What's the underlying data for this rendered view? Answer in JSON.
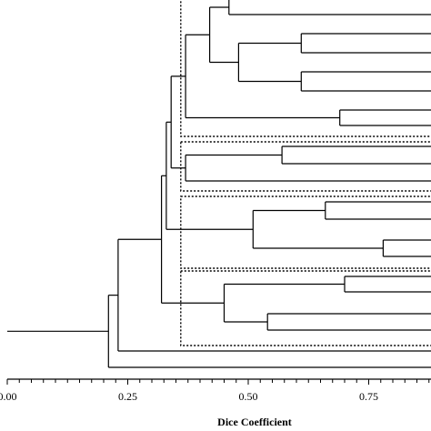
{
  "chart_data": {
    "type": "dendrogram",
    "xlabel": "Dice Coefficient",
    "xlim": [
      0.0,
      0.87
    ],
    "x_ticks": [
      "0.00",
      "0.25",
      "0.50",
      "0.75"
    ],
    "x_tick_values": [
      0.0,
      0.25,
      0.5,
      0.75
    ],
    "minor_tick_step": 0.025,
    "line_color": "#000000",
    "cluster_box_style": "dotted",
    "merges": [
      {
        "id": "A",
        "height": 0.46,
        "children": [
          "leaf",
          "leaf"
        ],
        "visible_part": "lower child only"
      },
      {
        "id": "B",
        "height": 0.61,
        "children": [
          "leaf",
          "leaf"
        ]
      },
      {
        "id": "C",
        "height": 0.61,
        "children": [
          "leaf",
          "leaf"
        ]
      },
      {
        "id": "D",
        "height": 0.48,
        "children": [
          "B",
          "C"
        ]
      },
      {
        "id": "E",
        "height": 0.42,
        "children": [
          "A",
          "D"
        ]
      },
      {
        "id": "F",
        "height": 0.69,
        "children": [
          "leaf",
          "leaf"
        ]
      },
      {
        "id": "G",
        "height": 0.37,
        "children": [
          "E",
          "F"
        ]
      },
      {
        "id": "H",
        "height": 0.57,
        "children": [
          "leaf",
          "leaf"
        ]
      },
      {
        "id": "I",
        "height": 0.37,
        "children": [
          "H",
          "leaf"
        ]
      },
      {
        "id": "J",
        "height": 0.34,
        "children": [
          "G",
          "I"
        ]
      },
      {
        "id": "K",
        "height": 0.66,
        "children": [
          "leaf",
          "leaf"
        ]
      },
      {
        "id": "L",
        "height": 0.78,
        "children": [
          "leaf",
          "leaf"
        ]
      },
      {
        "id": "M",
        "height": 0.51,
        "children": [
          "K",
          "L"
        ]
      },
      {
        "id": "N",
        "height": 0.33,
        "children": [
          "J",
          "M"
        ]
      },
      {
        "id": "O",
        "height": 0.7,
        "children": [
          "leaf",
          "leaf"
        ]
      },
      {
        "id": "P",
        "height": 0.54,
        "children": [
          "leaf",
          "leaf"
        ]
      },
      {
        "id": "Q",
        "height": 0.45,
        "children": [
          "O",
          "P"
        ]
      },
      {
        "id": "R",
        "height": 0.32,
        "children": [
          "N",
          "Q"
        ]
      },
      {
        "id": "S",
        "height": 0.23,
        "children": [
          "R",
          "leaf"
        ]
      },
      {
        "id": "T",
        "height": 0.21,
        "children": [
          "S",
          "leaf"
        ]
      },
      {
        "id": "root",
        "height": 0.0,
        "children": [
          "T"
        ]
      }
    ],
    "cluster_boxes": [
      {
        "from": 0.36,
        "to": 0.87,
        "contains": [
          "G"
        ]
      },
      {
        "from": 0.36,
        "to": 0.87,
        "contains": [
          "I"
        ]
      },
      {
        "from": 0.36,
        "to": 0.87,
        "contains": [
          "M"
        ]
      },
      {
        "from": 0.36,
        "to": 0.87,
        "contains": [
          "Q"
        ]
      }
    ]
  }
}
